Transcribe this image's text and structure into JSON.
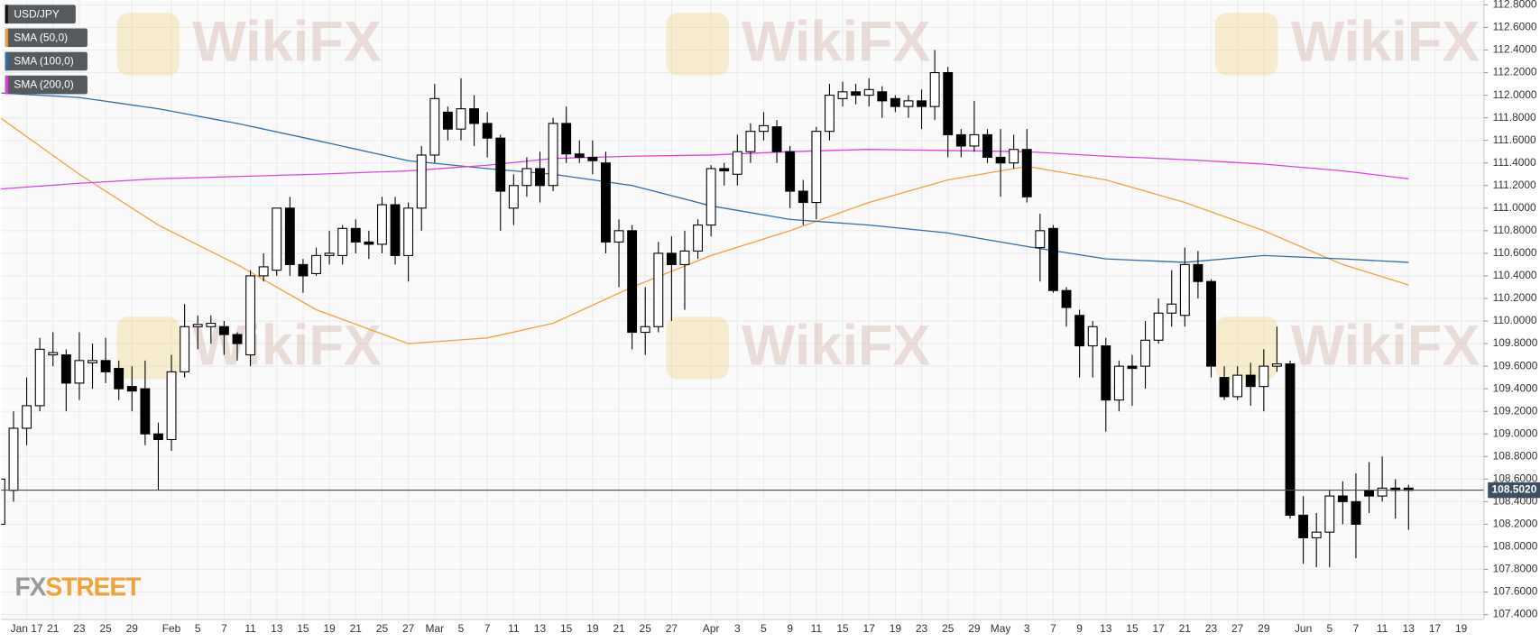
{
  "chart_data": {
    "type": "candlestick",
    "categories": [
      null,
      null,
      "Jan 17",
      null,
      "21",
      null,
      "23",
      null,
      "25",
      null,
      "29",
      null,
      null,
      "Feb",
      null,
      "5",
      null,
      "7",
      null,
      "11",
      null,
      "13",
      null,
      "15",
      null,
      "19",
      null,
      "21",
      null,
      "25",
      null,
      "27",
      null,
      "Mar",
      null,
      "5",
      null,
      "7",
      null,
      "11",
      null,
      "13",
      null,
      "15",
      null,
      "19",
      null,
      "21",
      null,
      "25",
      null,
      "27",
      null,
      null,
      "Apr",
      null,
      "3",
      null,
      "5",
      null,
      "9",
      null,
      "11",
      null,
      "15",
      null,
      "17",
      null,
      "19",
      null,
      "23",
      null,
      "25",
      null,
      "29",
      null,
      "May",
      null,
      "3",
      null,
      "7",
      null,
      "9",
      null,
      "13",
      null,
      "15",
      null,
      "17",
      null,
      "21",
      null,
      "23",
      null,
      "27",
      null,
      "29",
      null,
      null,
      "Jun",
      null,
      "5",
      null,
      "7",
      null,
      "11",
      null,
      "13",
      null,
      "17",
      null,
      "19"
    ],
    "series": [
      {
        "name": "USD/JPY",
        "color": "#000000",
        "open": [
          108.2,
          108.5,
          109.05,
          109.25,
          109.7,
          109.7,
          109.45,
          109.63,
          109.65,
          109.58,
          109.42,
          109.4,
          109.0,
          108.95,
          109.55,
          109.95,
          109.95,
          109.95,
          109.88,
          109.7,
          110.4,
          110.45,
          111.0,
          110.5,
          110.42,
          110.58,
          110.58,
          110.82,
          110.7,
          110.68,
          111.03,
          110.58,
          111.0,
          111.47,
          111.85,
          111.7,
          111.88,
          111.75,
          111.62,
          111.0,
          111.2,
          111.35,
          111.2,
          111.75,
          111.48,
          111.45,
          111.4,
          110.7,
          110.8,
          109.9,
          109.95,
          110.6,
          110.5,
          110.62,
          110.85,
          111.35,
          111.3,
          111.5,
          111.68,
          111.72,
          111.5,
          111.15,
          111.05,
          111.68,
          111.97,
          112.03,
          112.0,
          112.03,
          111.97,
          111.9,
          111.95,
          111.9,
          112.2,
          111.65,
          111.55,
          111.65,
          111.45,
          111.4,
          111.52,
          110.65,
          110.82,
          110.27,
          110.05,
          109.78,
          109.78,
          109.3,
          109.6,
          109.6,
          109.83,
          110.07,
          110.05,
          110.5,
          110.35,
          109.5,
          109.33,
          109.52,
          109.42,
          109.6,
          109.62,
          108.28,
          108.08,
          108.13,
          108.45,
          108.4,
          108.5,
          108.45,
          108.52,
          108.52,
          null,
          null,
          null,
          null
        ],
        "high": [
          108.7,
          109.2,
          109.5,
          109.85,
          109.9,
          109.75,
          109.9,
          109.8,
          109.85,
          109.65,
          109.6,
          109.65,
          109.1,
          109.7,
          110.15,
          110.05,
          110.05,
          110.0,
          109.9,
          110.45,
          110.6,
          111.0,
          111.1,
          110.55,
          110.65,
          110.8,
          110.85,
          110.9,
          110.8,
          111.1,
          111.1,
          111.05,
          111.55,
          112.1,
          111.9,
          112.15,
          112.0,
          111.85,
          111.65,
          111.3,
          111.45,
          111.5,
          111.8,
          111.9,
          111.6,
          111.6,
          111.5,
          110.9,
          110.85,
          110.3,
          110.7,
          110.75,
          110.8,
          110.9,
          111.38,
          111.4,
          111.65,
          111.75,
          111.85,
          111.78,
          111.55,
          111.25,
          111.72,
          112.1,
          112.12,
          112.1,
          112.15,
          112.08,
          112.0,
          112.0,
          112.05,
          112.4,
          112.25,
          111.7,
          111.95,
          111.7,
          111.7,
          111.65,
          111.7,
          110.95,
          110.85,
          110.3,
          110.1,
          110.0,
          109.85,
          109.65,
          109.7,
          110.0,
          110.2,
          110.45,
          110.65,
          110.62,
          110.37,
          109.6,
          109.6,
          109.63,
          109.75,
          109.95,
          109.65,
          108.45,
          108.3,
          108.5,
          108.58,
          108.65,
          108.75,
          108.8,
          108.6,
          108.55,
          null,
          null,
          null,
          null
        ],
        "low": [
          108.0,
          108.4,
          108.9,
          109.2,
          109.6,
          109.2,
          109.3,
          109.4,
          109.45,
          109.3,
          109.2,
          108.9,
          108.5,
          108.85,
          109.5,
          109.75,
          109.8,
          109.7,
          109.65,
          109.6,
          110.35,
          110.4,
          110.4,
          110.25,
          110.4,
          110.5,
          110.5,
          110.6,
          110.55,
          110.6,
          110.5,
          110.35,
          110.8,
          111.4,
          111.6,
          111.6,
          111.55,
          111.45,
          110.8,
          110.85,
          111.1,
          111.05,
          111.15,
          111.4,
          111.4,
          111.3,
          110.6,
          110.3,
          109.75,
          109.7,
          109.9,
          110.0,
          110.1,
          110.55,
          110.75,
          111.2,
          111.2,
          111.4,
          111.6,
          111.4,
          111.0,
          110.85,
          110.9,
          111.6,
          111.9,
          111.92,
          111.9,
          111.8,
          111.85,
          111.8,
          111.7,
          111.78,
          111.45,
          111.45,
          111.5,
          111.4,
          111.1,
          111.35,
          111.05,
          110.35,
          110.25,
          109.95,
          109.5,
          109.5,
          109.02,
          109.2,
          109.25,
          109.4,
          109.8,
          109.95,
          109.95,
          110.2,
          109.5,
          109.3,
          109.3,
          109.25,
          109.2,
          109.55,
          108.25,
          107.85,
          107.82,
          107.82,
          108.2,
          107.9,
          108.3,
          108.4,
          108.25,
          108.15,
          null,
          null,
          null,
          null
        ],
        "close": [
          108.6,
          109.05,
          109.25,
          109.75,
          109.72,
          109.45,
          109.65,
          109.65,
          109.55,
          109.4,
          109.38,
          109.0,
          108.95,
          109.55,
          109.95,
          109.97,
          109.98,
          109.88,
          109.8,
          110.4,
          110.48,
          111.0,
          110.5,
          110.4,
          110.58,
          110.6,
          110.82,
          110.7,
          110.68,
          111.03,
          110.58,
          111.0,
          111.47,
          111.97,
          111.7,
          111.88,
          111.75,
          111.62,
          111.15,
          111.2,
          111.35,
          111.2,
          111.75,
          111.48,
          111.45,
          111.42,
          110.7,
          110.8,
          109.9,
          109.95,
          110.6,
          110.5,
          110.62,
          110.85,
          111.35,
          111.33,
          111.5,
          111.68,
          111.73,
          111.5,
          111.15,
          111.05,
          111.68,
          112.0,
          112.03,
          112.0,
          112.05,
          111.95,
          111.9,
          111.95,
          111.9,
          112.2,
          111.65,
          111.55,
          111.65,
          111.45,
          111.4,
          111.52,
          111.1,
          110.8,
          110.27,
          110.12,
          109.78,
          109.95,
          109.3,
          109.6,
          109.58,
          109.83,
          110.07,
          110.15,
          110.5,
          110.35,
          109.6,
          109.33,
          109.52,
          109.42,
          109.6,
          109.62,
          108.28,
          108.08,
          108.13,
          108.45,
          108.4,
          108.2,
          108.45,
          108.52,
          108.5,
          108.5,
          null,
          null,
          null,
          null
        ]
      },
      {
        "name": "SMA (50,0)",
        "color": "#f0a33a",
        "x": [
          0,
          6,
          12,
          18,
          24,
          31,
          37,
          42,
          48,
          54,
          60,
          66,
          72,
          78,
          84,
          90,
          96,
          102,
          107
        ],
        "values": [
          111.8,
          111.3,
          110.85,
          110.5,
          110.1,
          109.8,
          109.85,
          109.98,
          110.3,
          110.58,
          110.8,
          111.05,
          111.25,
          111.37,
          111.25,
          111.05,
          110.8,
          110.5,
          110.32
        ]
      },
      {
        "name": "SMA (100,0)",
        "color": "#2f6ea8",
        "x": [
          0,
          6,
          12,
          18,
          24,
          31,
          37,
          42,
          48,
          54,
          60,
          66,
          72,
          78,
          84,
          90,
          96,
          102,
          107
        ],
        "values": [
          112.02,
          111.98,
          111.88,
          111.75,
          111.6,
          111.42,
          111.35,
          111.3,
          111.2,
          111.02,
          110.9,
          110.85,
          110.78,
          110.66,
          110.55,
          110.52,
          110.58,
          110.55,
          110.52
        ]
      },
      {
        "name": "SMA (200,0)",
        "color": "#e23fe3",
        "x": [
          0,
          6,
          12,
          18,
          24,
          31,
          37,
          42,
          48,
          54,
          60,
          66,
          72,
          78,
          84,
          90,
          96,
          102,
          107
        ],
        "values": [
          111.17,
          111.22,
          111.26,
          111.28,
          111.3,
          111.33,
          111.38,
          111.44,
          111.46,
          111.47,
          111.5,
          111.52,
          111.51,
          111.5,
          111.46,
          111.43,
          111.39,
          111.33,
          111.26
        ]
      }
    ],
    "last_price": {
      "value": 108.502,
      "label": "108.5020"
    },
    "ylim": [
      107.4,
      112.8
    ],
    "yticks": [
      {
        "value": 107.4,
        "label": "107.4000"
      },
      {
        "value": 107.6,
        "label": "107.6000"
      },
      {
        "value": 107.8,
        "label": "107.8000"
      },
      {
        "value": 108.0,
        "label": "108.0000"
      },
      {
        "value": 108.2,
        "label": "108.2000"
      },
      {
        "value": 108.4,
        "label": "108.4000"
      },
      {
        "value": 108.6,
        "label": "108.6000"
      },
      {
        "value": 108.8,
        "label": "108.8000"
      },
      {
        "value": 109.0,
        "label": "109.0000"
      },
      {
        "value": 109.2,
        "label": "109.2000"
      },
      {
        "value": 109.4,
        "label": "109.4000"
      },
      {
        "value": 109.6,
        "label": "109.6000"
      },
      {
        "value": 109.8,
        "label": "109.8000"
      },
      {
        "value": 110.0,
        "label": "110.0000"
      },
      {
        "value": 110.2,
        "label": "110.2000"
      },
      {
        "value": 110.4,
        "label": "110.4000"
      },
      {
        "value": 110.6,
        "label": "110.6000"
      },
      {
        "value": 110.8,
        "label": "110.8000"
      },
      {
        "value": 111.0,
        "label": "111.0000"
      },
      {
        "value": 111.2,
        "label": "111.2000"
      },
      {
        "value": 111.4,
        "label": "111.4000"
      },
      {
        "value": 111.6,
        "label": "111.6000"
      },
      {
        "value": 111.8,
        "label": "111.8000"
      },
      {
        "value": 112.0,
        "label": "112.0000"
      },
      {
        "value": 112.2,
        "label": "112.2000"
      },
      {
        "value": 112.4,
        "label": "112.4000"
      },
      {
        "value": 112.6,
        "label": "112.6000"
      },
      {
        "value": 112.8,
        "label": "112.8000"
      }
    ],
    "grid": true,
    "legend": "top-left",
    "up_color": "#ffffff",
    "down_color": "#000000",
    "watermark": "WikiFX",
    "logo": [
      "FX",
      "STREET"
    ]
  }
}
